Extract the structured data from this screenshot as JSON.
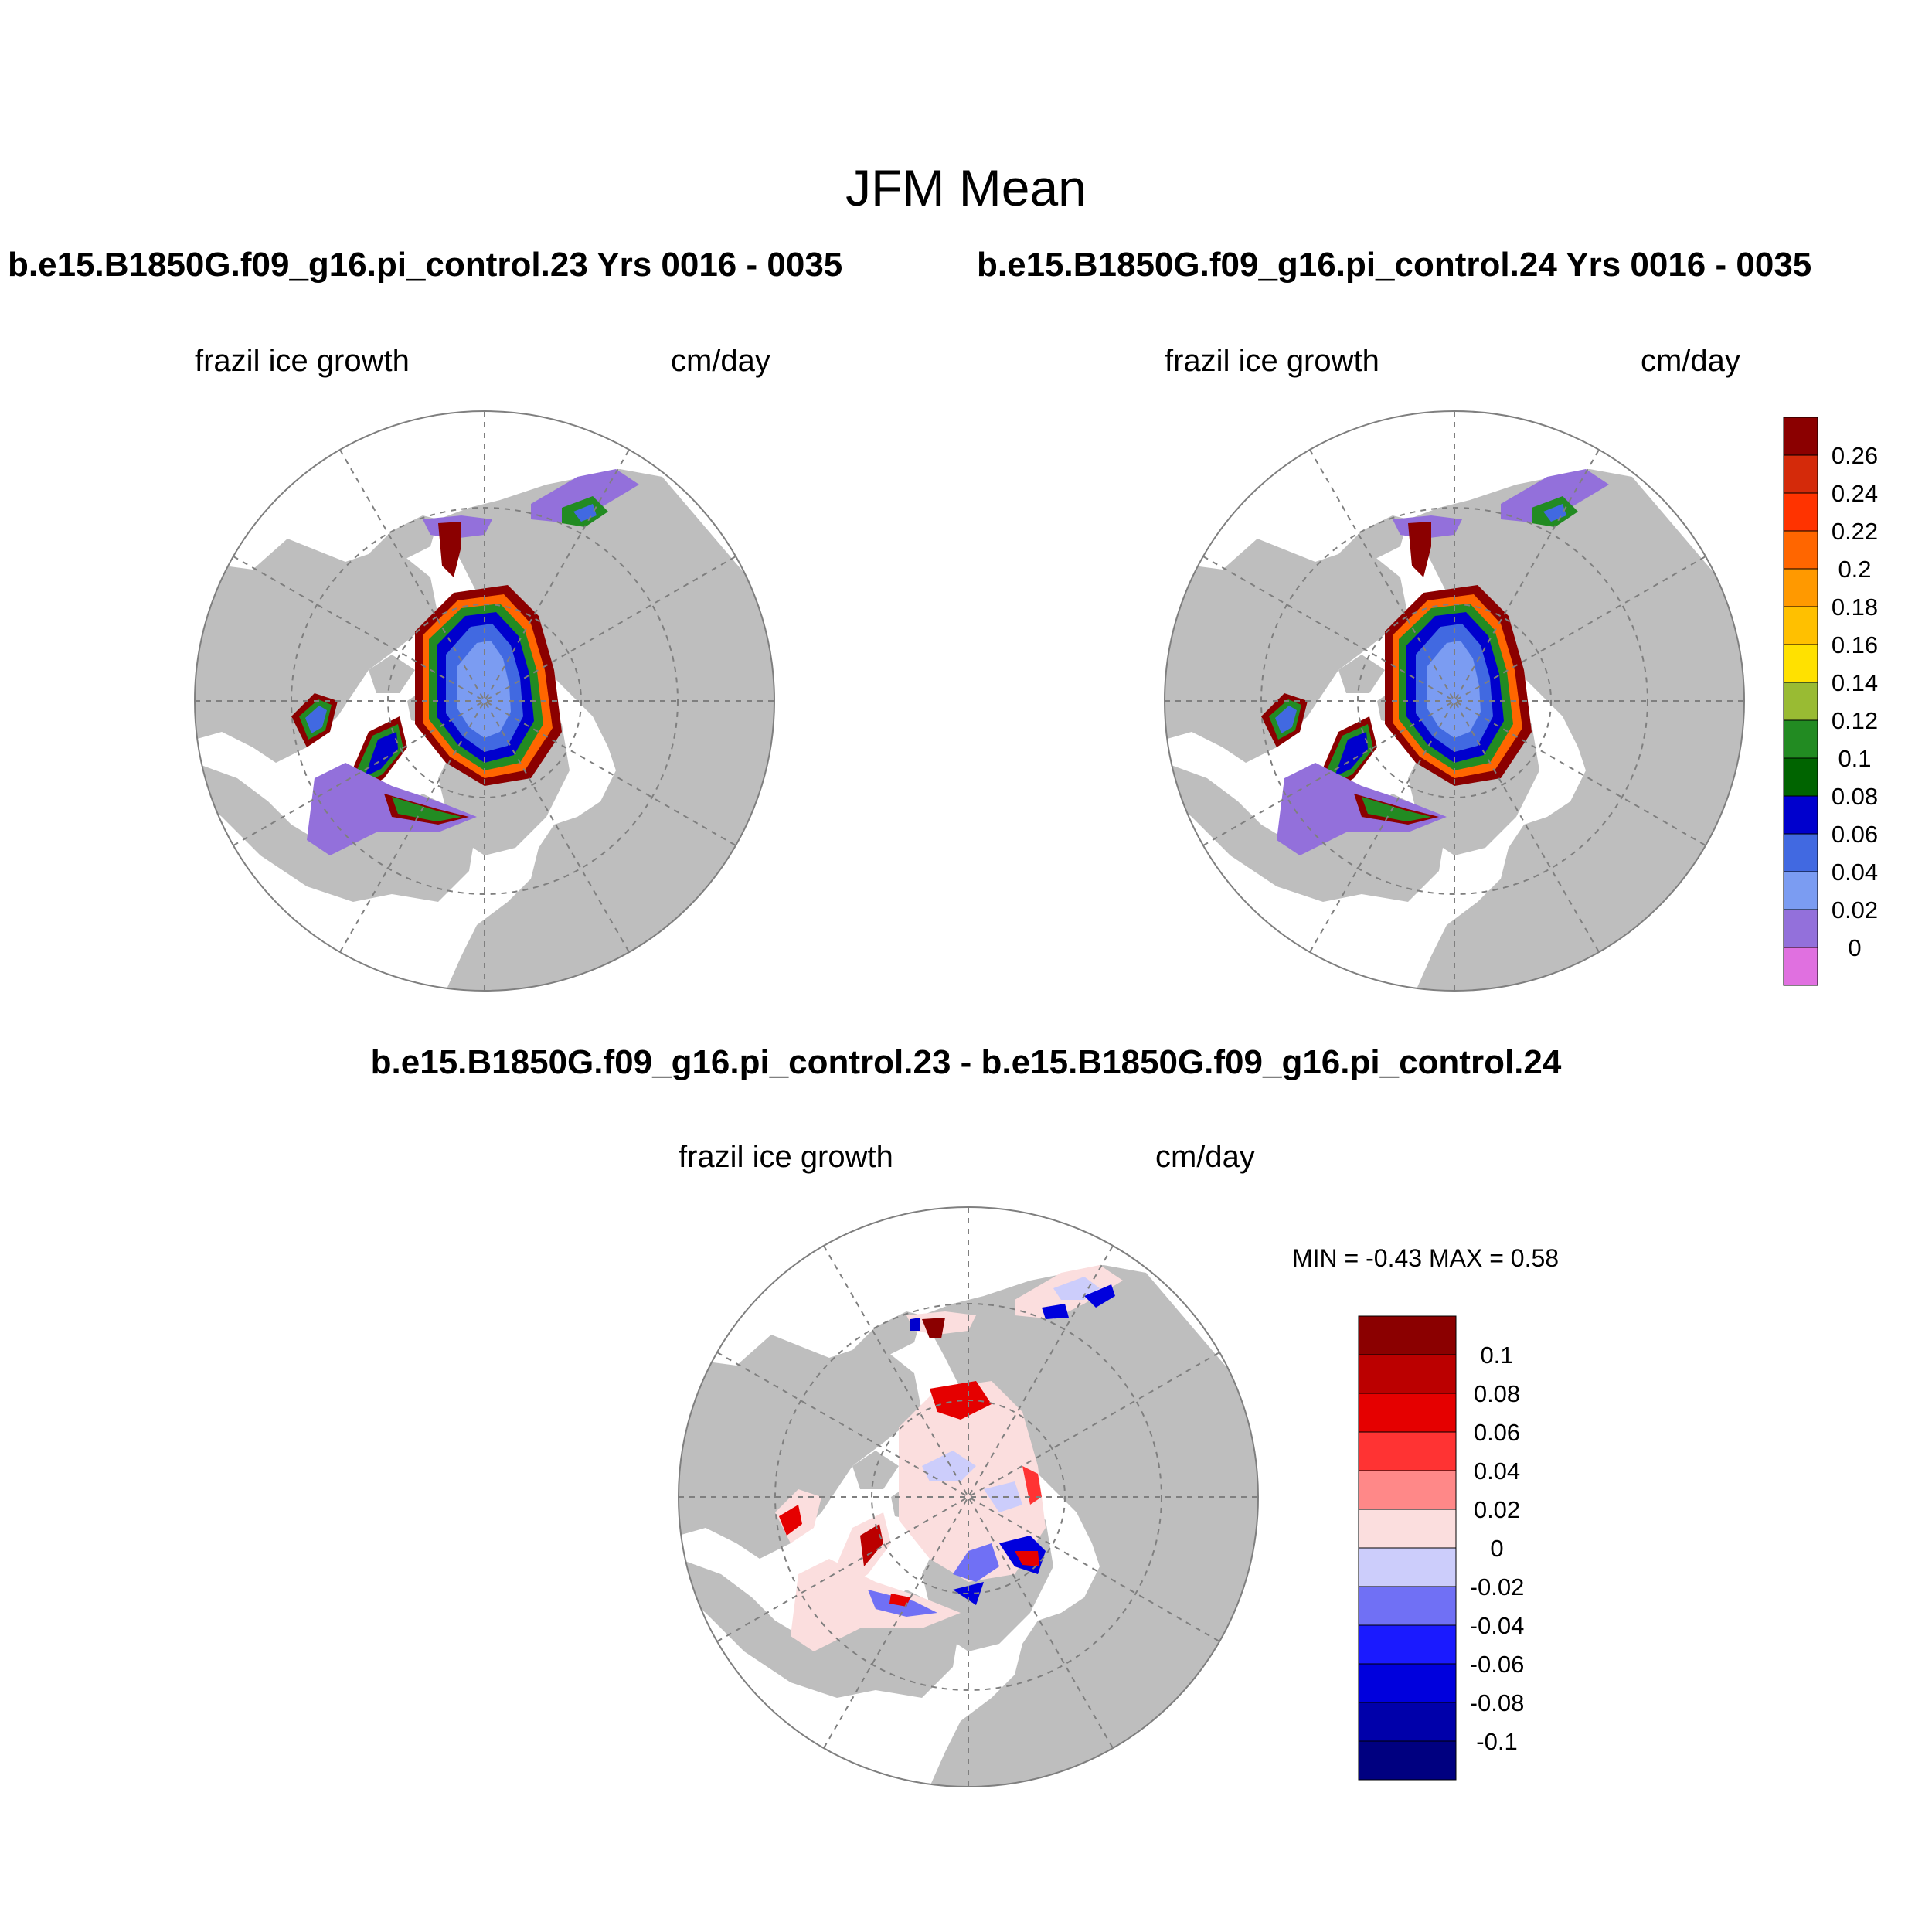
{
  "figure": {
    "title": "JFM Mean"
  },
  "panels": [
    {
      "title": "b.e15.B1850G.f09_g16.pi_control.23  Yrs 0016 - 0035",
      "left_label": "frazil ice growth",
      "right_label": "cm/day"
    },
    {
      "title": "b.e15.B1850G.f09_g16.pi_control.24  Yrs 0016 - 0035",
      "left_label": "frazil ice growth",
      "right_label": "cm/day"
    },
    {
      "title": "b.e15.B1850G.f09_g16.pi_control.23 - b.e15.B1850G.f09_g16.pi_control.24",
      "left_label": "frazil ice growth",
      "right_label": "cm/day",
      "stats": "MIN =  -0.43 MAX =   0.58"
    }
  ],
  "colorbars": {
    "abs": {
      "labels": [
        "0.26",
        "0.24",
        "0.22",
        "0.2",
        "0.18",
        "0.16",
        "0.14",
        "0.12",
        "0.1",
        "0.08",
        "0.06",
        "0.04",
        "0.02",
        "0"
      ],
      "colors": [
        "#8b0000",
        "#d42a0a",
        "#ff3300",
        "#ff6600",
        "#ff9900",
        "#ffc000",
        "#ffe100",
        "#99bb33",
        "#228b22",
        "#006400",
        "#0000cd",
        "#4169e1",
        "#7b9cf2",
        "#9370db",
        "#e070e0"
      ]
    },
    "diff": {
      "labels": [
        "0.1",
        "0.08",
        "0.06",
        "0.04",
        "0.02",
        "0",
        "-0.02",
        "-0.04",
        "-0.06",
        "-0.08",
        "-0.1"
      ],
      "colors": [
        "#8b0000",
        "#bb0000",
        "#e50000",
        "#ff3333",
        "#ff8888",
        "#fbdede",
        "#cccdfb",
        "#7070f5",
        "#1a1aff",
        "#0000dd",
        "#0000aa",
        "#000080"
      ]
    }
  },
  "map_colors": {
    "land": "#bebebe",
    "ocean": "#ffffff",
    "graticule": "#7f7f7f"
  }
}
